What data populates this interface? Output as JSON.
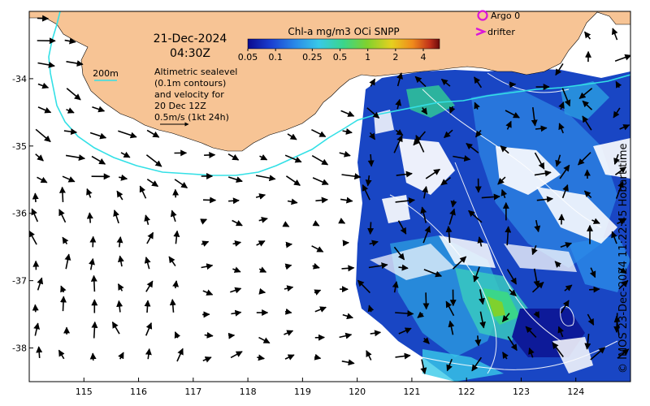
{
  "map": {
    "date": "21-Dec-2024",
    "time": "04:30Z",
    "colorbar": {
      "title": "Chl-a mg/m3 OCi SNPP",
      "ticks": [
        "0.05",
        "0.1",
        "0.25",
        "0.5",
        "1",
        "2",
        "4"
      ],
      "tick_values": [
        0.05,
        0.1,
        0.25,
        0.5,
        1,
        2,
        4
      ],
      "range": [
        0.05,
        6
      ],
      "scale": "log",
      "colors": [
        "#0a0a8f",
        "#1a3fd1",
        "#2a8be8",
        "#38c9e8",
        "#3ad68a",
        "#7fd12e",
        "#e6d01f",
        "#f08a1c",
        "#c0301a",
        "#6a0a0a"
      ]
    },
    "legend": {
      "contour_label": "200m",
      "contour_color": "#33e0e6",
      "argo_label": "Argo 0",
      "argo_color": "#d916d9",
      "drifter_label": "drifter",
      "drifter_color": "#d916d9",
      "sealevel_lines": [
        "Altimetric sealevel",
        "(0.1m contours)",
        "and velocity for",
        "20 Dec 12Z",
        "0.5m/s (1kt 24h)"
      ]
    },
    "x_axis": {
      "ticks": [
        "115",
        "116",
        "117",
        "118",
        "119",
        "120",
        "121",
        "122",
        "123",
        "124"
      ],
      "values": [
        115,
        116,
        117,
        118,
        119,
        120,
        121,
        122,
        123,
        124
      ],
      "range": [
        114.0,
        125.0
      ]
    },
    "y_axis": {
      "ticks": [
        "-34",
        "-35",
        "-36",
        "-37",
        "-38"
      ],
      "values": [
        -34,
        -35,
        -36,
        -37,
        -38
      ],
      "range": [
        -33.0,
        -38.5
      ]
    },
    "land_color": "#f7c495",
    "credit": "© IMOS 23-Dec-2024 11:22:45 Hobart time"
  }
}
